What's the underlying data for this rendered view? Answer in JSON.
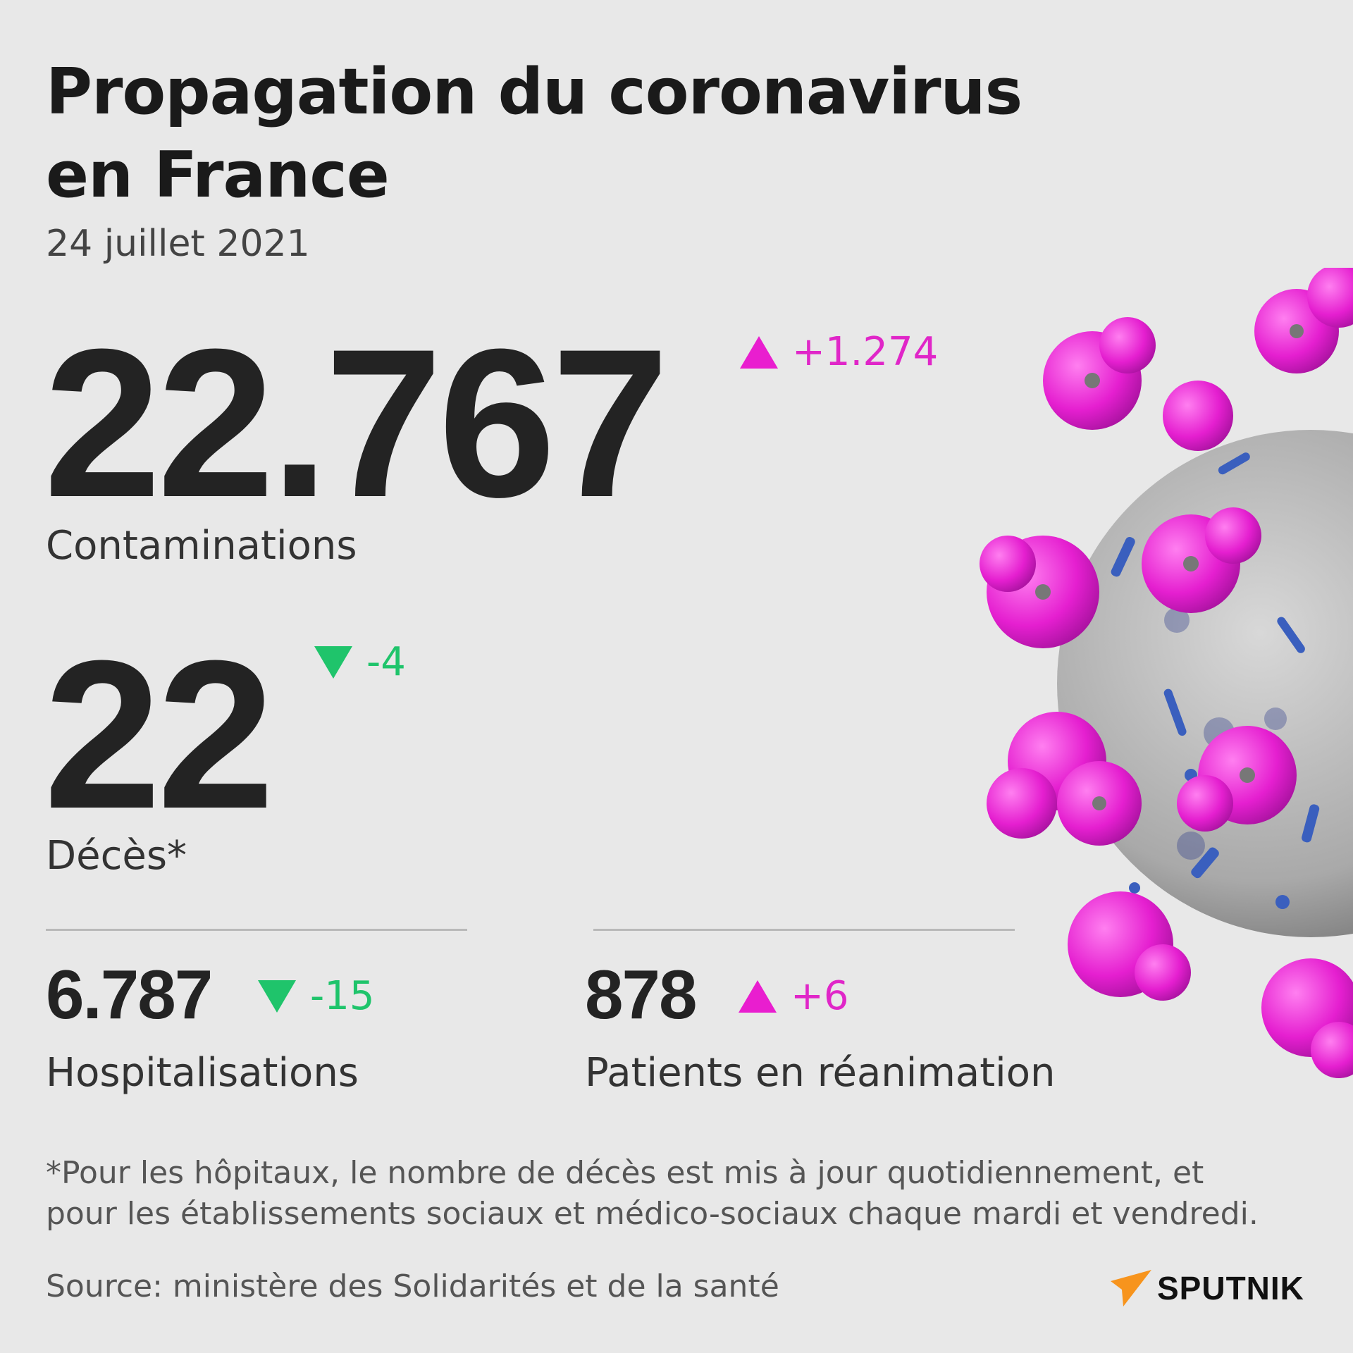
{
  "title_line1": "Propagation du coronavirus",
  "title_line2": "en France",
  "date": "24 juillet 2021",
  "colors": {
    "increase": "#e91ecf",
    "decrease": "#1fc46b",
    "background": "#e8e8e8"
  },
  "contaminations": {
    "value": "22.767",
    "delta": "+1.274",
    "direction": "up",
    "label": "Contaminations"
  },
  "deces": {
    "value": "22",
    "delta": "-4",
    "direction": "down",
    "label": "Décès*"
  },
  "hospitalisations": {
    "value": "6.787",
    "delta": "-15",
    "direction": "down",
    "label": "Hospitalisations"
  },
  "reanimation": {
    "value": "878",
    "delta": "+6",
    "direction": "up",
    "label": "Patients en réanimation"
  },
  "note_line1": "*Pour les hôpitaux, le nombre de décès est mis à jour quotidiennement, et",
  "note_line2": "pour les établissements sociaux et médico-sociaux chaque mardi et vendredi.",
  "source": "Source: ministère des Solidarités et de la santé",
  "logo": {
    "text": "SPUTNIK",
    "icon": "sputnik-logo-icon"
  },
  "illustration": "coronavirus-illustration"
}
